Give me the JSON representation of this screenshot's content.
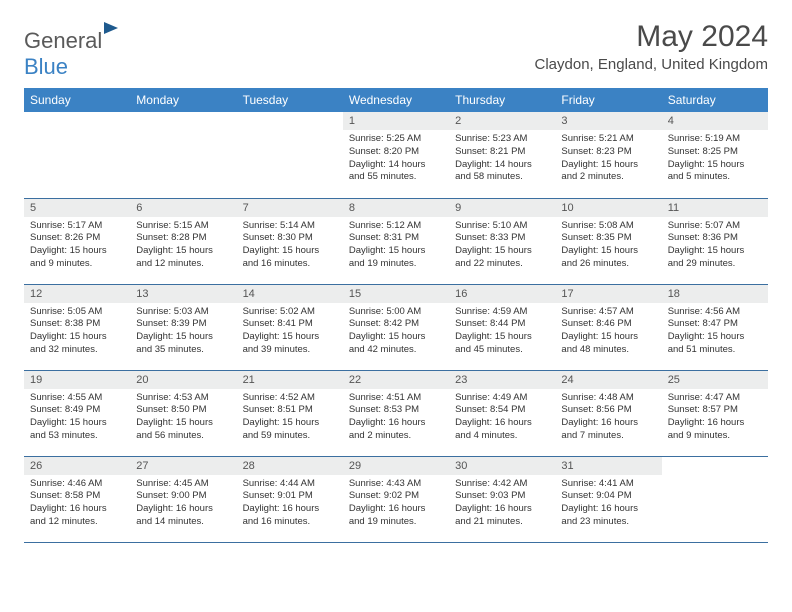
{
  "logo": {
    "part1": "General",
    "part2": "Blue"
  },
  "title": "May 2024",
  "location": "Claydon, England, United Kingdom",
  "header_bg": "#3b82c4",
  "day_bar_bg": "#eceded",
  "week_border": "#3b6fa0",
  "day_headers": [
    "Sunday",
    "Monday",
    "Tuesday",
    "Wednesday",
    "Thursday",
    "Friday",
    "Saturday"
  ],
  "weeks": [
    [
      null,
      null,
      null,
      {
        "n": "1",
        "sr": "5:25 AM",
        "ss": "8:20 PM",
        "dl": "14 hours and 55 minutes."
      },
      {
        "n": "2",
        "sr": "5:23 AM",
        "ss": "8:21 PM",
        "dl": "14 hours and 58 minutes."
      },
      {
        "n": "3",
        "sr": "5:21 AM",
        "ss": "8:23 PM",
        "dl": "15 hours and 2 minutes."
      },
      {
        "n": "4",
        "sr": "5:19 AM",
        "ss": "8:25 PM",
        "dl": "15 hours and 5 minutes."
      }
    ],
    [
      {
        "n": "5",
        "sr": "5:17 AM",
        "ss": "8:26 PM",
        "dl": "15 hours and 9 minutes."
      },
      {
        "n": "6",
        "sr": "5:15 AM",
        "ss": "8:28 PM",
        "dl": "15 hours and 12 minutes."
      },
      {
        "n": "7",
        "sr": "5:14 AM",
        "ss": "8:30 PM",
        "dl": "15 hours and 16 minutes."
      },
      {
        "n": "8",
        "sr": "5:12 AM",
        "ss": "8:31 PM",
        "dl": "15 hours and 19 minutes."
      },
      {
        "n": "9",
        "sr": "5:10 AM",
        "ss": "8:33 PM",
        "dl": "15 hours and 22 minutes."
      },
      {
        "n": "10",
        "sr": "5:08 AM",
        "ss": "8:35 PM",
        "dl": "15 hours and 26 minutes."
      },
      {
        "n": "11",
        "sr": "5:07 AM",
        "ss": "8:36 PM",
        "dl": "15 hours and 29 minutes."
      }
    ],
    [
      {
        "n": "12",
        "sr": "5:05 AM",
        "ss": "8:38 PM",
        "dl": "15 hours and 32 minutes."
      },
      {
        "n": "13",
        "sr": "5:03 AM",
        "ss": "8:39 PM",
        "dl": "15 hours and 35 minutes."
      },
      {
        "n": "14",
        "sr": "5:02 AM",
        "ss": "8:41 PM",
        "dl": "15 hours and 39 minutes."
      },
      {
        "n": "15",
        "sr": "5:00 AM",
        "ss": "8:42 PM",
        "dl": "15 hours and 42 minutes."
      },
      {
        "n": "16",
        "sr": "4:59 AM",
        "ss": "8:44 PM",
        "dl": "15 hours and 45 minutes."
      },
      {
        "n": "17",
        "sr": "4:57 AM",
        "ss": "8:46 PM",
        "dl": "15 hours and 48 minutes."
      },
      {
        "n": "18",
        "sr": "4:56 AM",
        "ss": "8:47 PM",
        "dl": "15 hours and 51 minutes."
      }
    ],
    [
      {
        "n": "19",
        "sr": "4:55 AM",
        "ss": "8:49 PM",
        "dl": "15 hours and 53 minutes."
      },
      {
        "n": "20",
        "sr": "4:53 AM",
        "ss": "8:50 PM",
        "dl": "15 hours and 56 minutes."
      },
      {
        "n": "21",
        "sr": "4:52 AM",
        "ss": "8:51 PM",
        "dl": "15 hours and 59 minutes."
      },
      {
        "n": "22",
        "sr": "4:51 AM",
        "ss": "8:53 PM",
        "dl": "16 hours and 2 minutes."
      },
      {
        "n": "23",
        "sr": "4:49 AM",
        "ss": "8:54 PM",
        "dl": "16 hours and 4 minutes."
      },
      {
        "n": "24",
        "sr": "4:48 AM",
        "ss": "8:56 PM",
        "dl": "16 hours and 7 minutes."
      },
      {
        "n": "25",
        "sr": "4:47 AM",
        "ss": "8:57 PM",
        "dl": "16 hours and 9 minutes."
      }
    ],
    [
      {
        "n": "26",
        "sr": "4:46 AM",
        "ss": "8:58 PM",
        "dl": "16 hours and 12 minutes."
      },
      {
        "n": "27",
        "sr": "4:45 AM",
        "ss": "9:00 PM",
        "dl": "16 hours and 14 minutes."
      },
      {
        "n": "28",
        "sr": "4:44 AM",
        "ss": "9:01 PM",
        "dl": "16 hours and 16 minutes."
      },
      {
        "n": "29",
        "sr": "4:43 AM",
        "ss": "9:02 PM",
        "dl": "16 hours and 19 minutes."
      },
      {
        "n": "30",
        "sr": "4:42 AM",
        "ss": "9:03 PM",
        "dl": "16 hours and 21 minutes."
      },
      {
        "n": "31",
        "sr": "4:41 AM",
        "ss": "9:04 PM",
        "dl": "16 hours and 23 minutes."
      },
      null
    ]
  ],
  "labels": {
    "sunrise": "Sunrise:",
    "sunset": "Sunset:",
    "daylight": "Daylight:"
  }
}
